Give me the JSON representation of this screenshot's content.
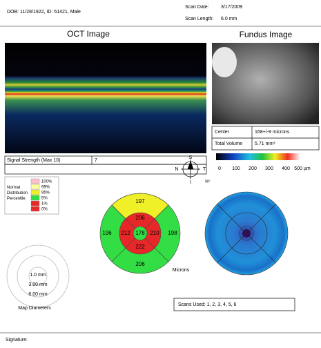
{
  "header": {
    "patient": "DOB: 11/28/1922, ID: 61421, Male",
    "scan_date_label": "Scan Date:",
    "scan_date": "3/17/2009",
    "scan_length_label": "Scan Length:",
    "scan_length": "6.0 mm"
  },
  "oct_title": "OCT Image",
  "fundus_title": "Fundus Image",
  "measurements": {
    "rows": [
      [
        "Center",
        "168+/-9 microns"
      ],
      [
        "Total Volume",
        "5.71 mm³"
      ]
    ]
  },
  "signal_strength": {
    "label": "Signal Strength (Max 10)",
    "value": "7"
  },
  "color_scale": {
    "labels": [
      "0",
      "100",
      "200",
      "300",
      "400",
      "500 µm"
    ]
  },
  "compass": {
    "superior": "S",
    "nasal": "N",
    "temporal": "T",
    "inferior": "I",
    "angle": "90°"
  },
  "legend": {
    "title": "Normal Distribution Percentile",
    "levels": [
      "100%",
      "99%",
      "95%",
      "5%",
      "1%",
      "0%"
    ]
  },
  "thickness_map": {
    "outer_superior": 197,
    "inner_superior": 206,
    "outer_nasal": 196,
    "inner_nasal": 212,
    "center": 178,
    "inner_temporal": 210,
    "outer_temporal": 198,
    "inner_inferior": 222,
    "outer_inferior": 206,
    "unit": "Microns"
  },
  "map_diameters": {
    "labels": [
      "1.0 mm",
      "3.00 mm",
      "6.00 mm"
    ],
    "title": "Map Diameters"
  },
  "scans_used": "Scans Used: 1, 2, 3, 4, 5, 6",
  "signature": "Signature:"
}
